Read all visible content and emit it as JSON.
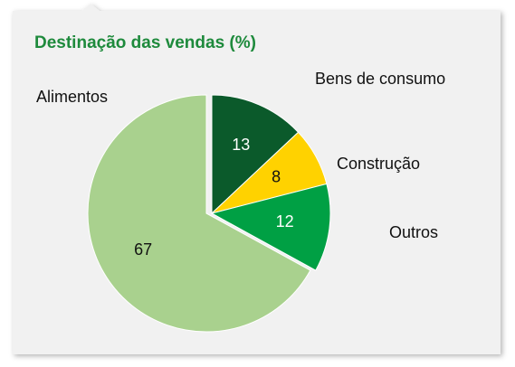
{
  "chart_data": {
    "type": "pie",
    "title": "Destinação das vendas (%)",
    "categories": [
      "Bens de consumo",
      "Construção",
      "Outros",
      "Alimentos"
    ],
    "values": [
      13,
      8,
      12,
      67
    ],
    "colors": [
      "#0b5a2b",
      "#ffd200",
      "#00a044",
      "#a9d18e"
    ]
  }
}
